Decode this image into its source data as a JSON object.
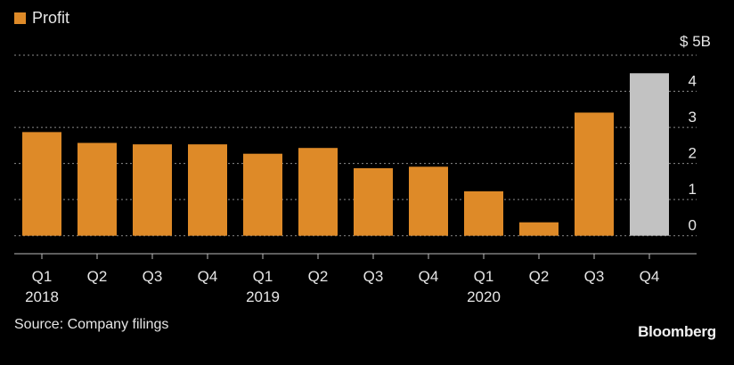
{
  "chart_data": {
    "type": "bar",
    "categories": [
      "Q1",
      "Q2",
      "Q3",
      "Q4",
      "Q1",
      "Q2",
      "Q3",
      "Q4",
      "Q1",
      "Q2",
      "Q3",
      "Q4"
    ],
    "year_labels": [
      "2018",
      "",
      "",
      "",
      "2019",
      "",
      "",
      "",
      "2020",
      "",
      "",
      ""
    ],
    "values": [
      2.87,
      2.57,
      2.53,
      2.53,
      2.27,
      2.43,
      1.87,
      1.91,
      1.23,
      0.37,
      3.41,
      4.5
    ],
    "bar_colors": [
      "#de8a28",
      "#de8a28",
      "#de8a28",
      "#de8a28",
      "#de8a28",
      "#de8a28",
      "#de8a28",
      "#de8a28",
      "#de8a28",
      "#de8a28",
      "#de8a28",
      "#c2c2c2"
    ],
    "ylim": [
      -0.5,
      5
    ],
    "yticks": [
      0,
      1,
      2,
      3,
      4,
      5
    ],
    "ytick_labels": [
      "0",
      "1",
      "2",
      "3",
      "4",
      "$ 5B"
    ],
    "legend": {
      "label": "Profit",
      "color": "#de8a28",
      "position": "top-left"
    },
    "grid": true
  },
  "source": "Source: Company filings",
  "brand": "Bloomberg"
}
